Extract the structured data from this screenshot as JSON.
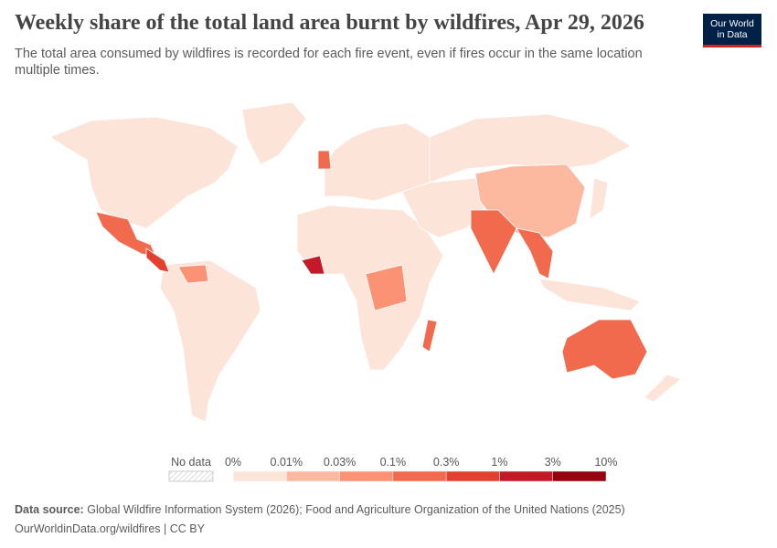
{
  "header": {
    "title": "Weekly share of the total land area burnt by wildfires, Apr 29, 2026",
    "subtitle": "The total area consumed by wildfires is recorded for each fire event, even if fires occur in the same location multiple times.",
    "logo": [
      "Our World",
      "in Data"
    ]
  },
  "legend": {
    "no_data": "No data",
    "ticks": [
      "0%",
      "0.01%",
      "0.03%",
      "0.1%",
      "0.3%",
      "1%",
      "3%",
      "10%"
    ],
    "colors": [
      "#fde4d8",
      "#fcb9a0",
      "#fb9273",
      "#f26a4d",
      "#e3402f",
      "#c41a27",
      "#99000d"
    ]
  },
  "footer": {
    "source_label": "Data source:",
    "source": "Global Wildfire Information System (2026); Food and Agriculture Organization of the United Nations (2025)",
    "url": "OurWorldinData.org/wildfires | CC BY"
  }
}
